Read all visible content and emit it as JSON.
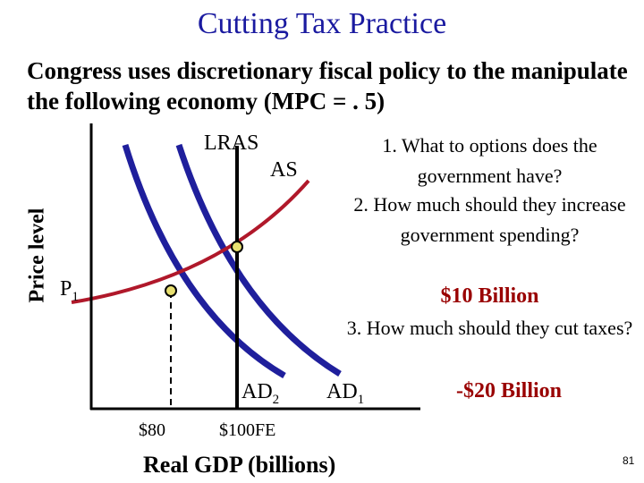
{
  "title": "Cutting Tax Practice",
  "subtitle": "Congress uses discretionary fiscal policy to the manipulate the following economy (MPC = . 5)",
  "graph": {
    "ylabel": "Price level",
    "xlabel": "Real GDP (billions)",
    "lras_label": "LRAS",
    "as_label": "AS",
    "ad1_label": "AD",
    "ad1_sub": "1",
    "ad2_label": "AD",
    "ad2_sub": "2",
    "p1_label": "P",
    "p1_sub": "1",
    "x_tick_80": "$80",
    "x_tick_fe": "$100FE",
    "colors": {
      "ad": "#1f1f9c",
      "as": "#b0182a",
      "axis": "#000000",
      "point": "#e8e070"
    }
  },
  "questions": {
    "q1": "1. What to options does the government have?",
    "q2": "2. How much should they increase government spending?",
    "a2": "$10 Billion",
    "q3": "3. How much should they cut taxes?",
    "a3": "-$20 Billion"
  },
  "page_number": "81"
}
